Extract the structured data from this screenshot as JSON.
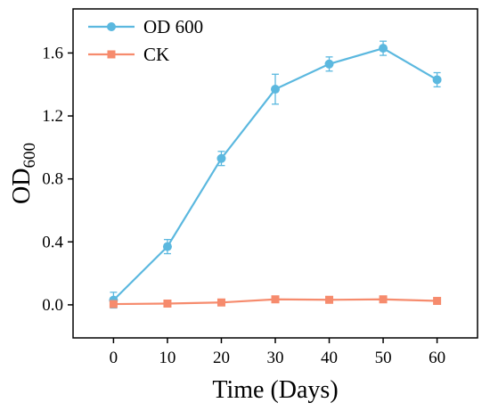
{
  "chart_data": {
    "type": "line",
    "xlabel": "Time (Days)",
    "ylabel_main": "OD",
    "ylabel_sub": "600",
    "x": [
      0,
      10,
      20,
      30,
      40,
      50,
      60
    ],
    "x_ticks": [
      "0",
      "10",
      "20",
      "30",
      "40",
      "50",
      "60"
    ],
    "y_ticks": [
      "0.0",
      "0.4",
      "0.8",
      "1.2",
      "1.6"
    ],
    "xlim": [
      -7.5,
      67.5
    ],
    "ylim": [
      -0.21,
      1.88
    ],
    "grid": false,
    "legend_position": "top-left",
    "series": [
      {
        "name": "OD 600",
        "color": "#5BB8DF",
        "marker": "circle",
        "values": [
          0.03,
          0.37,
          0.93,
          1.37,
          1.53,
          1.63,
          1.43
        ],
        "errors": [
          0.05,
          0.045,
          0.045,
          0.095,
          0.045,
          0.045,
          0.045
        ]
      },
      {
        "name": "CK",
        "color": "#F68B6D",
        "marker": "square",
        "values": [
          0.005,
          0.008,
          0.015,
          0.035,
          0.032,
          0.035,
          0.025
        ],
        "errors": [
          0.0,
          0.0,
          0.0,
          0.0,
          0.0,
          0.0,
          0.0
        ]
      }
    ]
  }
}
